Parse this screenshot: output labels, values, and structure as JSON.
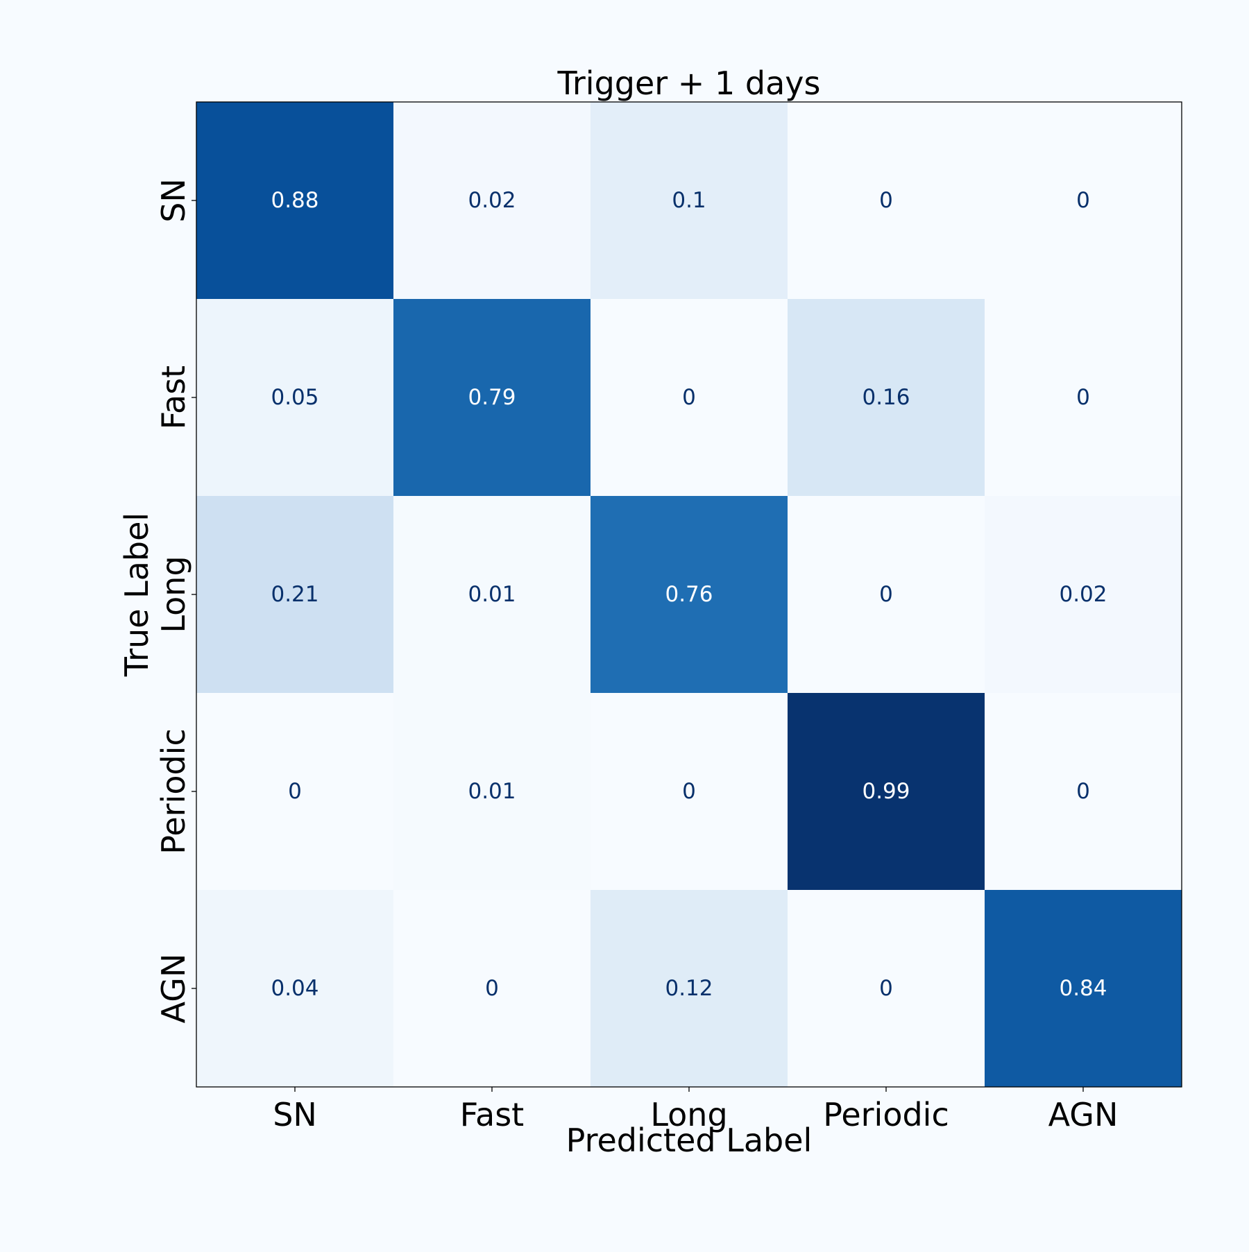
{
  "chart_data": {
    "type": "heatmap",
    "title": "Trigger + 1 days",
    "xlabel": "Predicted Label",
    "ylabel": "True Label",
    "x_categories": [
      "SN",
      "Fast",
      "Long",
      "Periodic",
      "AGN"
    ],
    "y_categories": [
      "SN",
      "Fast",
      "Long",
      "Periodic",
      "AGN"
    ],
    "values": [
      [
        0.88,
        0.02,
        0.1,
        0,
        0
      ],
      [
        0.05,
        0.79,
        0,
        0.16,
        0
      ],
      [
        0.21,
        0.01,
        0.76,
        0,
        0.02
      ],
      [
        0,
        0.01,
        0,
        0.99,
        0
      ],
      [
        0.04,
        0,
        0.12,
        0,
        0.84
      ]
    ],
    "value_range": [
      0,
      1
    ],
    "colormap": "Blues",
    "colorbar": false,
    "grid": false
  }
}
